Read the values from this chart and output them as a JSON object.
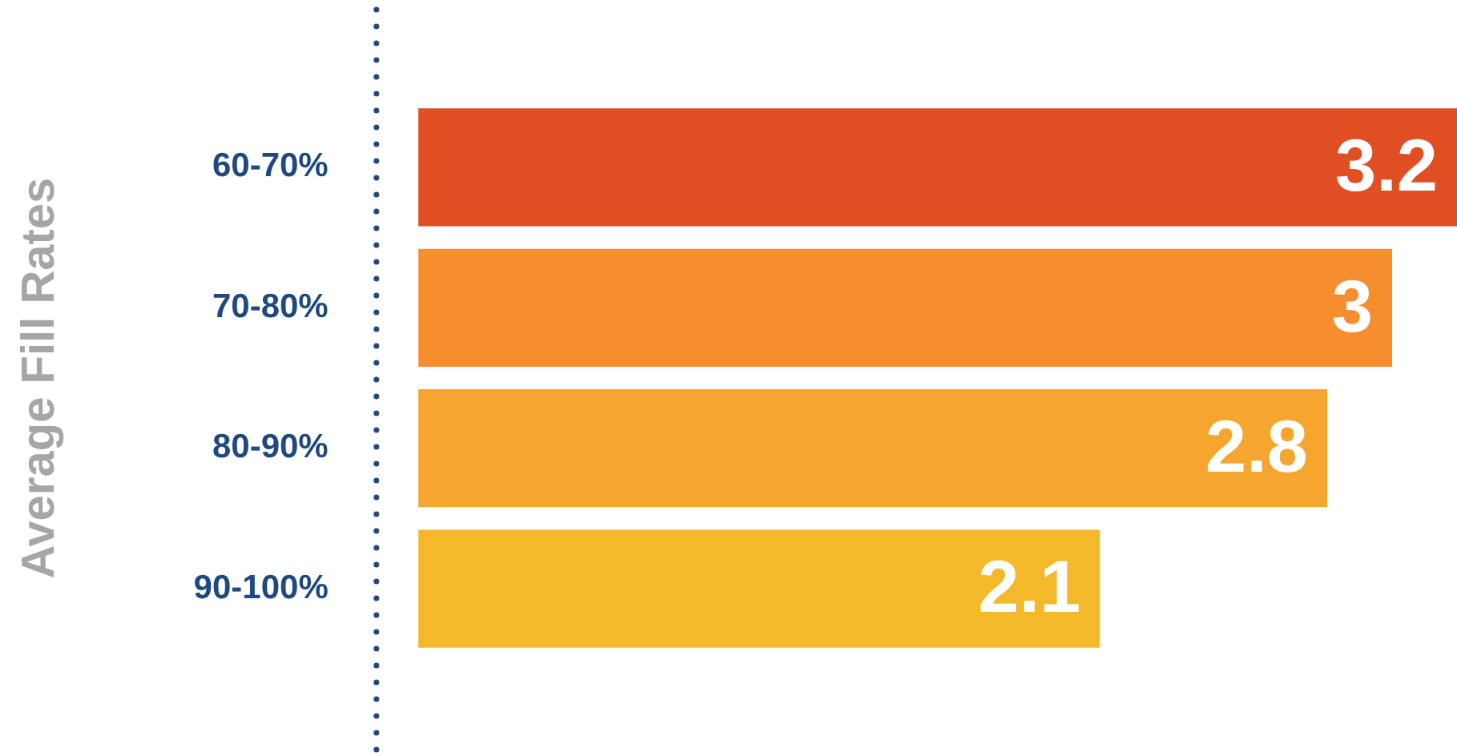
{
  "chart_data": {
    "type": "bar",
    "orientation": "horizontal",
    "ylabel": "Average Fill Rates",
    "categories": [
      "60-70%",
      "70-80%",
      "80-90%",
      "90-100%"
    ],
    "values": [
      3.2,
      3,
      2.8,
      2.1
    ],
    "colors": [
      "#e04e24",
      "#f68e30",
      "#f6a52e",
      "#f4b92b"
    ],
    "data_labels": true,
    "grid": false,
    "legend": false
  }
}
